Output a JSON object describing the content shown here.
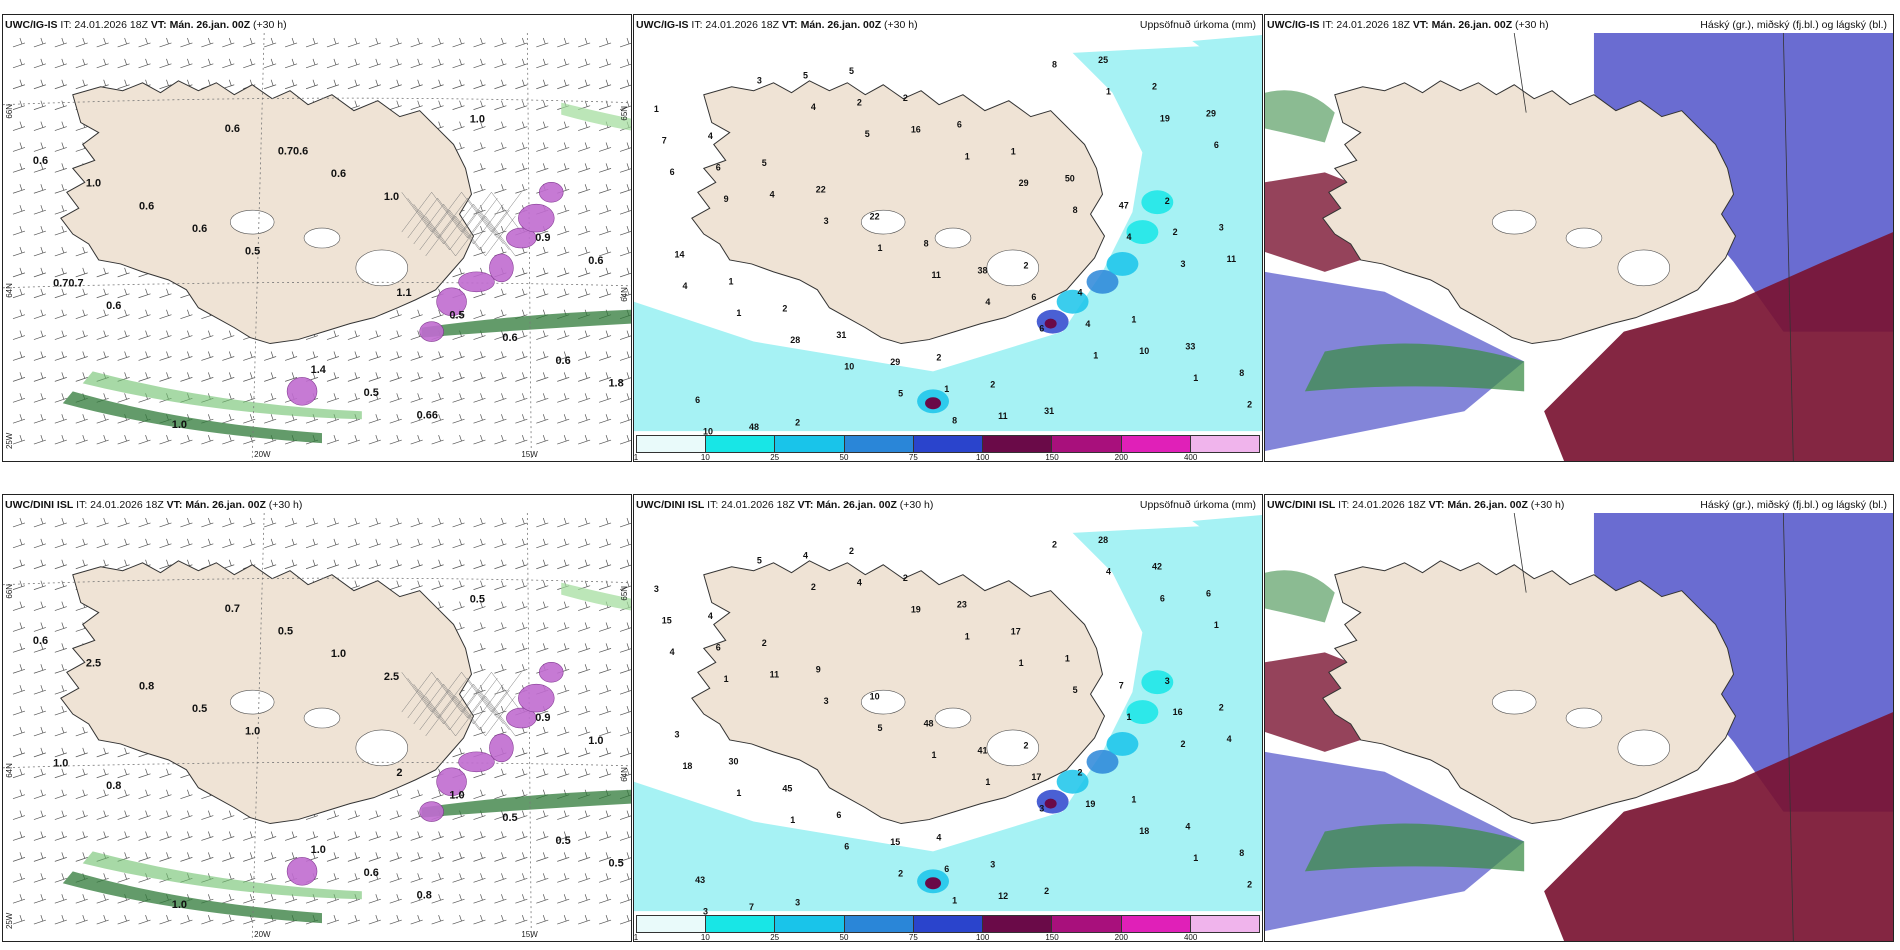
{
  "rows": [
    {
      "model": "UWC/IG-IS",
      "it_label": "IT: 24.01.2026 18Z",
      "vt_label": "VT: Mán. 26.jan. 00Z",
      "lead": "(+30 h)",
      "wind_panel": {
        "labels": [
          "0.6",
          "1.1",
          "1.0",
          "0.9",
          "1.4",
          "1.0",
          "0.5",
          "0.6",
          "0.6",
          "0.5",
          "0.6",
          "0.6",
          "0.70.6",
          "0.70.7",
          "0.66",
          "0.6",
          "0.6",
          "0.6",
          "0.6",
          "1.0",
          "0.5",
          "1.8",
          "1.0"
        ],
        "lat_labels": [
          "66N",
          "65N",
          "64N",
          "64N",
          "25W",
          "20W",
          "15W"
        ]
      },
      "precip_panel": {
        "title": "Uppsöfnuð úrkoma (mm)",
        "labels": [
          "1",
          "2",
          "2",
          "2",
          "2",
          "4",
          "4",
          "5",
          "3",
          "2",
          "5",
          "1",
          "2",
          "14",
          "31",
          "22",
          "33",
          "6",
          "1",
          "25",
          "22",
          "8",
          "1",
          "2",
          "2",
          "8",
          "6",
          "50",
          "31",
          "29",
          "38",
          "48",
          "47",
          "29",
          "7",
          "6",
          "5",
          "2",
          "1",
          "6",
          "4",
          "2",
          "11",
          "11",
          "4",
          "10",
          "16",
          "4",
          "8",
          "3",
          "1",
          "1",
          "1",
          "1",
          "1",
          "2",
          "29",
          "28",
          "19",
          "11",
          "10",
          "8",
          "10",
          "6",
          "4",
          "3",
          "4",
          "5",
          "6",
          "6",
          "4",
          "3",
          "8",
          "9",
          "1",
          "5"
        ]
      },
      "cloud_panel": {
        "title": "Háský (gr.), miðský (fj.bl.) og lágský (bl.)"
      }
    },
    {
      "model": "UWC/DINI ISL",
      "it_label": "IT: 24.01.2026 18Z",
      "vt_label": "VT: Mán. 26.jan. 00Z",
      "lead": "(+30 h)",
      "wind_panel": {
        "labels": [
          "0.6",
          "2",
          "1.0",
          "0.9",
          "1.0",
          "2.5",
          "1.0",
          "0.7",
          "1.0",
          "0.6",
          "0.8",
          "0.5",
          "0.5",
          "1.0",
          "0.8",
          "0.5",
          "0.5",
          "1.0",
          "0.8",
          "0.5",
          "1.0",
          "0.5",
          "2.5"
        ],
        "lat_labels": [
          "66N",
          "65N",
          "64N",
          "64N",
          "25W",
          "20W",
          "15W"
        ]
      },
      "precip_panel": {
        "title": "Uppsöfnuð úrkoma (mm)",
        "labels": [
          "3",
          "2",
          "3",
          "3",
          "4",
          "4",
          "2",
          "2",
          "2",
          "3",
          "2",
          "1",
          "2",
          "3",
          "2",
          "9",
          "4",
          "23",
          "30",
          "28",
          "10",
          "8",
          "17",
          "45",
          "42",
          "48",
          "43",
          "1",
          "6",
          "6",
          "41",
          "7",
          "7",
          "15",
          "15",
          "17",
          "4",
          "16",
          "6",
          "6",
          "19",
          "4",
          "4",
          "12",
          "11",
          "18",
          "19",
          "18",
          "2",
          "3",
          "1",
          "1",
          "1",
          "4",
          "5",
          "2",
          "1",
          "1",
          "6",
          "1",
          "3",
          "5",
          "6",
          "1",
          "1",
          "5",
          "1",
          "2",
          "4",
          "3",
          "2",
          "2",
          "1",
          "1"
        ]
      },
      "cloud_panel": {
        "title": "Háský (gr.), miðský (fj.bl.) og lágský (bl.)"
      }
    }
  ],
  "colorbar": {
    "ticks": [
      "1",
      "10",
      "25",
      "50",
      "75",
      "100",
      "150",
      "200",
      "400"
    ],
    "colors": [
      "#e9fafa",
      "#18e6e6",
      "#19c4ea",
      "#2a86d8",
      "#2a44cc",
      "#6a0a48",
      "#a8107c",
      "#e020b8",
      "#f0b4ec"
    ]
  },
  "colors": {
    "land": "#efe3d5",
    "sea_precip": "#a6f2f4",
    "wind_fill": "#3f9a47",
    "purple": "#c06cd0",
    "high_cloud": "#3e8e4a",
    "mid_cloud": "#5a5ccc",
    "low_cloud": "#7a1432"
  }
}
